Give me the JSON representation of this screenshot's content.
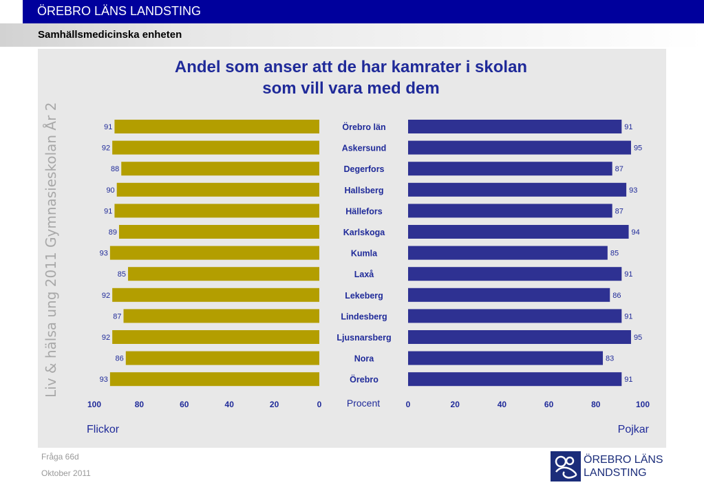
{
  "header": {
    "organization": "ÖREBRO LÄNS LANDSTING",
    "department": "Samhällsmedicinska enheten"
  },
  "side_label": "Liv & hälsa ung 2011 Gymnasieskolan År 2",
  "footer": {
    "question": "Fråga 66d",
    "date": "Oktober 2011"
  },
  "logo": {
    "text_line1": "ÖREBRO LÄNS",
    "text_line2": "LANDSTING"
  },
  "chart_data": {
    "type": "bar",
    "title_line1": "Andel som anser att de har kamrater i skolan",
    "title_line2": "som vill vara med dem",
    "categories": [
      "Örebro län",
      "Askersund",
      "Degerfors",
      "Hallsberg",
      "Hällefors",
      "Karlskoga",
      "Kumla",
      "Laxå",
      "Lekeberg",
      "Lindesberg",
      "Ljusnarsberg",
      "Nora",
      "Örebro"
    ],
    "series": [
      {
        "name": "Flickor",
        "color": "#b39e00",
        "values": [
          91,
          92,
          88,
          90,
          91,
          89,
          93,
          85,
          92,
          87,
          92,
          86,
          93
        ]
      },
      {
        "name": "Pojkar",
        "color": "#2e3192",
        "values": [
          91,
          95,
          87,
          93,
          87,
          94,
          85,
          91,
          86,
          91,
          95,
          83,
          91
        ]
      }
    ],
    "center_label": "Procent",
    "xlim": [
      0,
      100
    ],
    "left_ticks": [
      "100",
      "80",
      "60",
      "40",
      "20",
      "0"
    ],
    "right_ticks": [
      "0",
      "20",
      "40",
      "60",
      "80",
      "100"
    ],
    "grid": false
  }
}
